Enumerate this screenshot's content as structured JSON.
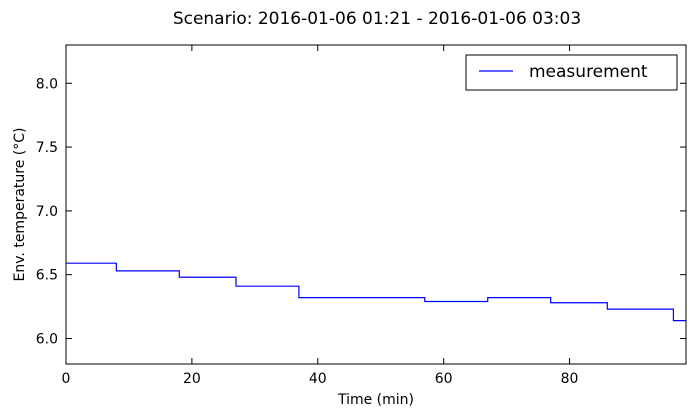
{
  "chart_data": {
    "type": "line",
    "title": "Scenario: 2016-01-06 01:21 - 2016-01-06 03:03",
    "xlabel": "Time (min)",
    "ylabel": "Env. temperature (°C)",
    "xlim": [
      0,
      98.5
    ],
    "ylim": [
      5.8,
      8.3
    ],
    "xticks": [
      0,
      20,
      40,
      60,
      80
    ],
    "xtick_labels": [
      "0",
      "20",
      "40",
      "60",
      "80"
    ],
    "yticks": [
      6.0,
      6.5,
      7.0,
      7.5,
      8.0
    ],
    "ytick_labels": [
      "6.0",
      "6.5",
      "7.0",
      "7.5",
      "8.0"
    ],
    "grid": false,
    "legend_position": "top-right",
    "series": [
      {
        "name": "measurement",
        "color": "#0000ff",
        "step": true,
        "x": [
          0,
          8,
          18,
          27,
          37,
          57,
          67,
          77,
          86,
          96.5,
          98.5
        ],
        "y": [
          6.59,
          6.53,
          6.48,
          6.41,
          6.32,
          6.29,
          6.32,
          6.28,
          6.23,
          6.14,
          6.14
        ]
      }
    ]
  }
}
